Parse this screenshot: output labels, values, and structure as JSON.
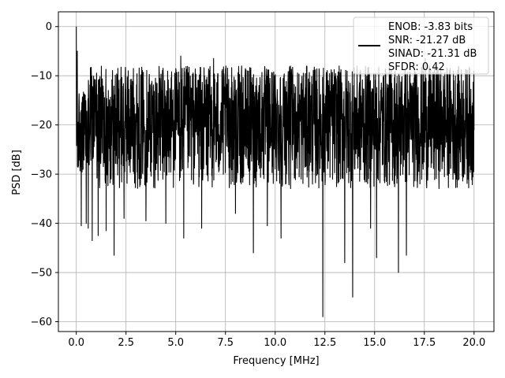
{
  "chart_data": {
    "type": "line",
    "title": "",
    "xlabel": "Frequency [MHz]",
    "ylabel": "PSD [dB]",
    "xlim": [
      -0.9,
      21.0
    ],
    "ylim": [
      -62.0,
      3.0
    ],
    "x_ticks": [
      0.0,
      2.5,
      5.0,
      7.5,
      10.0,
      12.5,
      15.0,
      17.5,
      20.0
    ],
    "x_tick_labels": [
      "0.0",
      "2.5",
      "5.0",
      "7.5",
      "10.0",
      "12.5",
      "15.0",
      "17.5",
      "20.0"
    ],
    "y_ticks": [
      0,
      -10,
      -20,
      -30,
      -40,
      -50,
      -60
    ],
    "y_tick_labels": [
      "0",
      "−10",
      "−20",
      "−30",
      "−40",
      "−50",
      "−60"
    ],
    "grid": true,
    "legend_position": "top-right",
    "line_color": "#000000",
    "series": [
      {
        "name": "ENOB: -3.83 bits",
        "legend_lines": [
          "ENOB: -3.83 bits",
          "SNR: -21.27 dB",
          "SINAD: -21.31 dB",
          "SFDR: 0.42"
        ],
        "x_range": [
          0.0,
          20.0
        ],
        "point_count": 2000,
        "y_top_envelope_approx": -8,
        "y_bottom_envelope_approx": -33,
        "peaks": [
          {
            "x": 0.0,
            "y": 0.0
          },
          {
            "x": 0.05,
            "y": -5.0
          },
          {
            "x": 5.25,
            "y": -6.0
          },
          {
            "x": 6.9,
            "y": -6.5
          },
          {
            "x": 17.55,
            "y": -6.5
          }
        ],
        "dips": [
          {
            "x": 0.25,
            "y": -40.5
          },
          {
            "x": 0.5,
            "y": -40.0
          },
          {
            "x": 0.6,
            "y": -41.0
          },
          {
            "x": 0.8,
            "y": -43.5
          },
          {
            "x": 1.1,
            "y": -42.5
          },
          {
            "x": 1.5,
            "y": -41.5
          },
          {
            "x": 1.9,
            "y": -46.5
          },
          {
            "x": 2.4,
            "y": -39.0
          },
          {
            "x": 3.5,
            "y": -39.5
          },
          {
            "x": 4.5,
            "y": -40.0
          },
          {
            "x": 5.4,
            "y": -43.0
          },
          {
            "x": 6.3,
            "y": -41.0
          },
          {
            "x": 8.0,
            "y": -38.0
          },
          {
            "x": 8.9,
            "y": -46.0
          },
          {
            "x": 9.6,
            "y": -40.5
          },
          {
            "x": 10.3,
            "y": -43.0
          },
          {
            "x": 12.4,
            "y": -59.0
          },
          {
            "x": 13.5,
            "y": -48.0
          },
          {
            "x": 13.9,
            "y": -55.0
          },
          {
            "x": 15.1,
            "y": -47.0
          },
          {
            "x": 16.2,
            "y": -50.0
          },
          {
            "x": 16.6,
            "y": -46.5
          },
          {
            "x": 14.8,
            "y": -41.0
          }
        ]
      }
    ]
  }
}
